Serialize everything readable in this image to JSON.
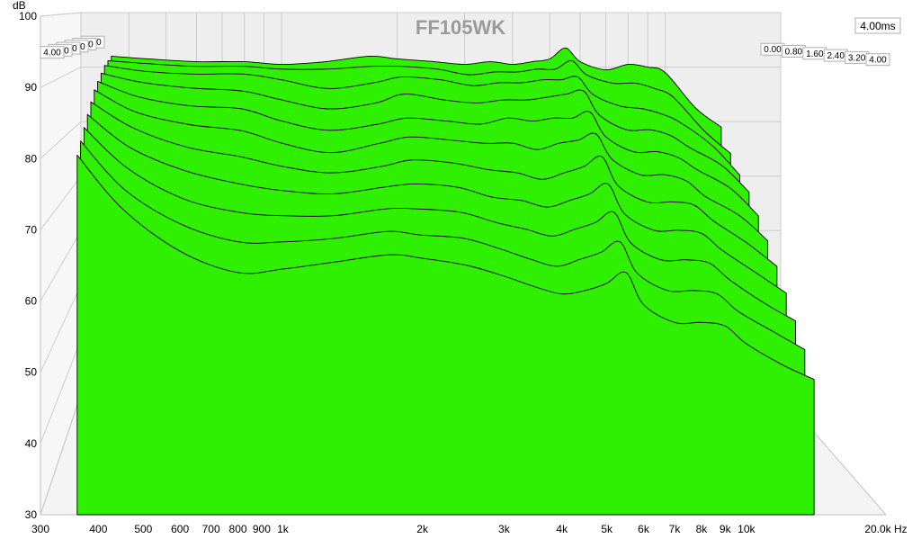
{
  "chart_data": {
    "type": "area",
    "title": "FF105WK",
    "ylabel": "dB",
    "xlabel_unit": "Hz",
    "ylim": [
      30,
      100
    ],
    "xlim": [
      300,
      20000
    ],
    "x_scale": "log",
    "y_ticks": [
      "30",
      "40",
      "50",
      "60",
      "70",
      "80",
      "90",
      "100"
    ],
    "x_ticks": [
      {
        "v": 300,
        "l": "300"
      },
      {
        "v": 400,
        "l": "400"
      },
      {
        "v": 500,
        "l": "500"
      },
      {
        "v": 600,
        "l": "600"
      },
      {
        "v": 700,
        "l": "700"
      },
      {
        "v": 800,
        "l": "800"
      },
      {
        "v": 900,
        "l": "900"
      },
      {
        "v": 1000,
        "l": "1k"
      },
      {
        "v": 2000,
        "l": "2k"
      },
      {
        "v": 3000,
        "l": "3k"
      },
      {
        "v": 4000,
        "l": "4k"
      },
      {
        "v": 5000,
        "l": "5k"
      },
      {
        "v": 6000,
        "l": "6k"
      },
      {
        "v": 7000,
        "l": "7k"
      },
      {
        "v": 8000,
        "l": "8k"
      },
      {
        "v": 9000,
        "l": "9k"
      },
      {
        "v": 10000,
        "l": "10k"
      },
      {
        "v": 20000,
        "l": "20.0k Hz"
      }
    ],
    "time_ticks_left": [
      "0.00",
      "0.80",
      "1.60",
      "2.40",
      "3.20",
      "4.00"
    ],
    "time_ticks_right": [
      "0.00",
      "0.80",
      "1.60",
      "2.40",
      "3.20",
      "4.00"
    ],
    "time_max_label": "4.00ms",
    "fill_color": "#2ef000",
    "grid": true,
    "series": [
      {
        "time_ms": 0.0,
        "freq": [
          360,
          450,
          600,
          800,
          1000,
          1300,
          1700,
          2000,
          2500,
          3000,
          3500,
          4000,
          4500,
          5000,
          5500,
          6000,
          7000,
          8000,
          9000,
          10000,
          12000,
          14000
        ],
        "values": [
          92,
          91.5,
          91,
          91,
          90.5,
          91,
          92,
          91.5,
          91,
          90.5,
          91,
          90.5,
          91,
          91.5,
          93.5,
          91,
          89.5,
          90.5,
          90,
          89,
          82.5,
          79
        ]
      },
      {
        "time_ms": 0.4,
        "values": [
          91.5,
          91,
          90.5,
          90.5,
          90,
          90,
          90.5,
          90.5,
          90,
          89,
          89.5,
          89.5,
          90,
          90,
          91.5,
          89,
          87.5,
          87.5,
          86.5,
          85,
          79,
          75
        ]
      },
      {
        "time_ms": 0.8,
        "values": [
          91,
          90,
          89.5,
          89.5,
          88.5,
          87,
          88,
          89,
          88.5,
          87.5,
          88,
          88,
          88.5,
          88.5,
          89,
          86,
          84,
          83.5,
          82.5,
          81,
          77,
          72
        ]
      },
      {
        "time_ms": 1.2,
        "values": [
          90,
          88.5,
          87.5,
          87,
          85.5,
          84,
          85,
          86.5,
          85.5,
          85,
          85.5,
          85.5,
          86,
          86.5,
          87,
          83,
          80.5,
          80.5,
          79.5,
          77.5,
          74.5,
          70
        ]
      },
      {
        "time_ms": 1.6,
        "values": [
          89,
          86.5,
          85,
          84.5,
          82.5,
          81,
          82,
          83,
          82.5,
          82,
          83,
          82.5,
          83,
          83,
          84,
          80,
          77.5,
          77.5,
          76.5,
          74.5,
          71.5,
          67
        ]
      },
      {
        "time_ms": 2.0,
        "values": [
          88,
          84.5,
          82.5,
          81.5,
          79.5,
          78,
          79.5,
          80.5,
          80,
          79.5,
          79.5,
          78.5,
          79.5,
          80,
          81,
          77,
          74.5,
          74.5,
          73.5,
          71,
          68,
          64
        ]
      },
      {
        "time_ms": 2.4,
        "values": [
          86.5,
          82.5,
          79.5,
          78,
          76.5,
          75.5,
          76.5,
          77.5,
          77,
          76,
          75.5,
          74.5,
          75.5,
          76.5,
          78,
          73.5,
          71,
          71,
          70.5,
          68,
          64.5,
          61
        ]
      },
      {
        "time_ms": 2.8,
        "values": [
          85,
          80,
          76.5,
          74.5,
          73.5,
          73,
          74,
          74.5,
          74,
          72.5,
          72,
          71,
          72,
          73,
          74.5,
          70,
          67.5,
          67.5,
          67,
          64.5,
          61,
          58
        ]
      },
      {
        "time_ms": 3.2,
        "values": [
          83.5,
          77.5,
          73,
          71,
          70.5,
          70.5,
          71.5,
          71.5,
          71,
          69.5,
          68.5,
          67.5,
          68.5,
          69.5,
          71,
          66.5,
          64,
          64,
          63.5,
          61,
          57.5,
          55
        ]
      },
      {
        "time_ms": 3.6,
        "values": [
          82,
          75,
          70,
          67.5,
          67.5,
          68,
          69,
          68.5,
          68,
          66.5,
          65,
          64,
          65,
          66,
          67.5,
          63,
          60.5,
          60.5,
          60,
          57.5,
          54.5,
          52
        ]
      },
      {
        "time_ms": 4.0,
        "values": [
          80.5,
          73,
          67,
          64,
          64.5,
          65.5,
          66.5,
          66,
          65,
          63.5,
          62,
          61,
          61.5,
          62.5,
          64,
          59.5,
          57,
          57,
          56.5,
          54,
          51,
          49
        ]
      }
    ]
  }
}
